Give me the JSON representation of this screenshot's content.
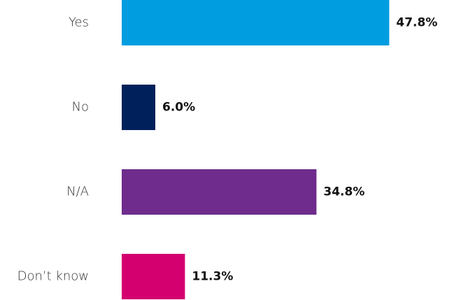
{
  "chart_data": {
    "type": "bar",
    "orientation": "horizontal",
    "categories": [
      "Yes",
      "No",
      "N/A",
      "Don’t know"
    ],
    "values": [
      47.8,
      6.0,
      34.8,
      11.3
    ],
    "value_labels": [
      "47.8%",
      "6.0%",
      "34.8%",
      "11.3%"
    ],
    "colors": [
      "#009de0",
      "#00205b",
      "#6f2c8c",
      "#d4006f"
    ]
  }
}
